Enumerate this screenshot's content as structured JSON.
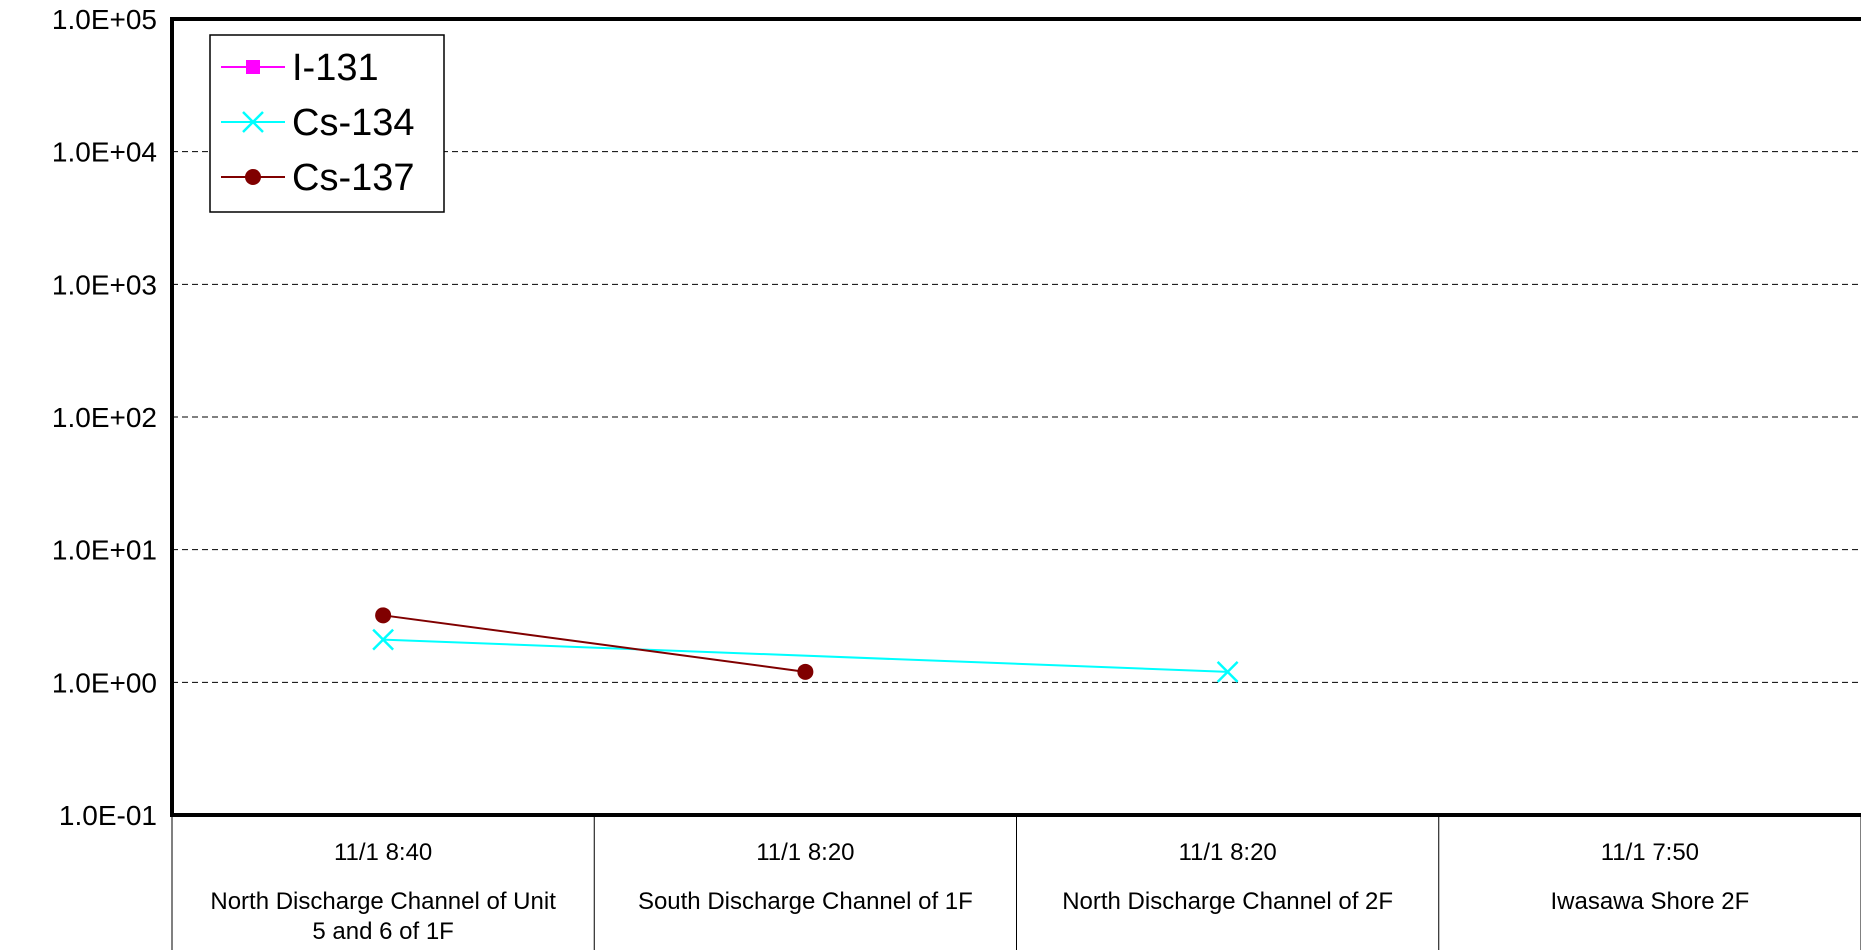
{
  "chart_data": {
    "type": "line",
    "yscale": "log",
    "ylim": [
      0.1,
      100000
    ],
    "yticks": [
      "1.0E-01",
      "1.0E+00",
      "1.0E+01",
      "1.0E+02",
      "1.0E+03",
      "1.0E+04",
      "1.0E+05"
    ],
    "grid": "horizontal dashed",
    "legend_position": "top-left",
    "categories": [
      {
        "time": "11/1 8:40",
        "location": "North Discharge Channel of Unit 5 and 6 of 1F",
        "location_lines": [
          "North Discharge Channel of Unit",
          "5 and 6 of 1F"
        ]
      },
      {
        "time": "11/1 8:20",
        "location": "South Discharge Channel of 1F",
        "location_lines": [
          "South Discharge Channel of 1F"
        ]
      },
      {
        "time": "11/1 8:20",
        "location": "North Discharge Channel of 2F",
        "location_lines": [
          "North Discharge Channel of 2F"
        ]
      },
      {
        "time": "11/1 7:50",
        "location": "Iwasawa Shore 2F",
        "location_lines": [
          "Iwasawa Shore 2F"
        ]
      }
    ],
    "series": [
      {
        "name": "I-131",
        "color": "#ff00ff",
        "marker": "square",
        "values": [
          null,
          null,
          null,
          null
        ]
      },
      {
        "name": "Cs-134",
        "color": "#00ffff",
        "marker": "x",
        "values": [
          2.1,
          null,
          1.2,
          null
        ]
      },
      {
        "name": "Cs-137",
        "color": "#800000",
        "marker": "circle",
        "values": [
          3.2,
          1.2,
          null,
          null
        ]
      }
    ]
  }
}
